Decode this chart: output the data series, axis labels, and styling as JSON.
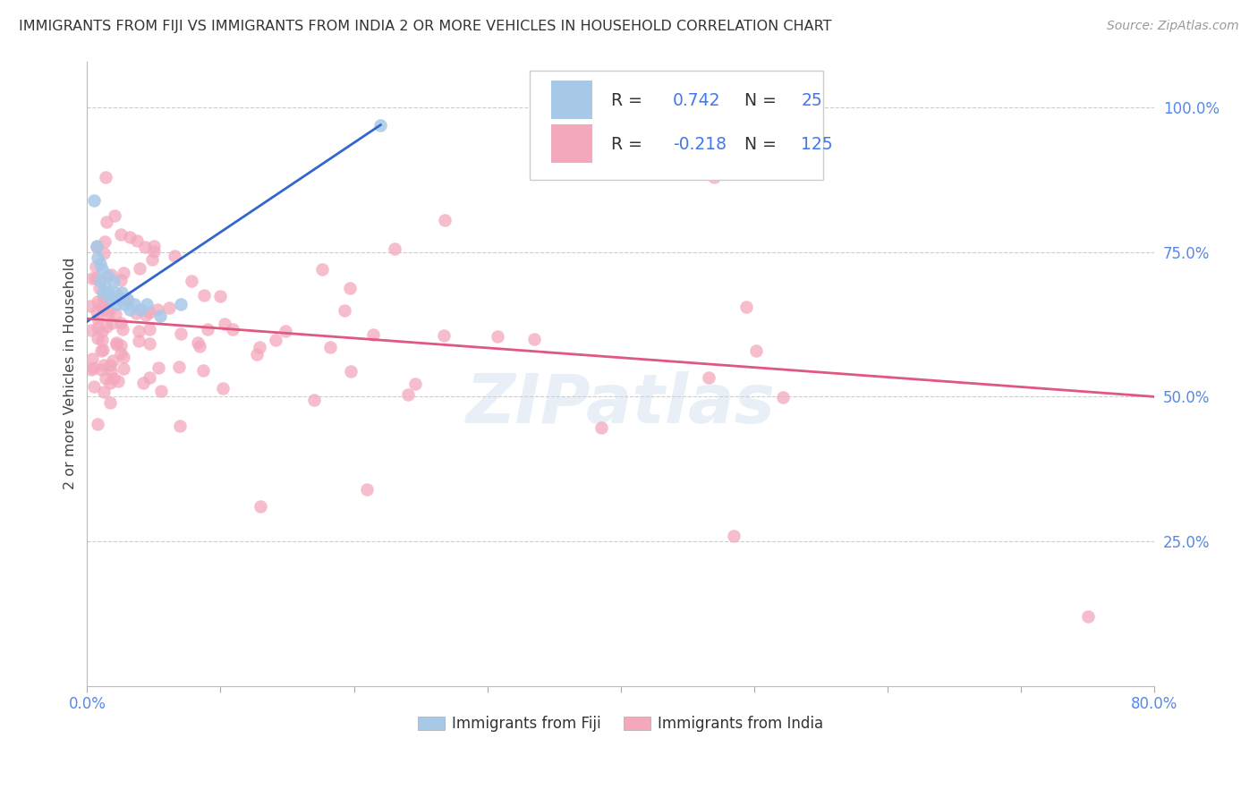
{
  "title": "IMMIGRANTS FROM FIJI VS IMMIGRANTS FROM INDIA 2 OR MORE VEHICLES IN HOUSEHOLD CORRELATION CHART",
  "source": "Source: ZipAtlas.com",
  "ylabel": "2 or more Vehicles in Household",
  "ytick_labels": [
    "100.0%",
    "75.0%",
    "50.0%",
    "25.0%"
  ],
  "ytick_values": [
    1.0,
    0.75,
    0.5,
    0.25
  ],
  "xlim": [
    0.0,
    0.8
  ],
  "ylim": [
    0.0,
    1.08
  ],
  "fiji_color": "#a8c8e8",
  "india_color": "#f4a8bc",
  "fiji_line_color": "#3366cc",
  "india_line_color": "#e05880",
  "fiji_R": 0.742,
  "fiji_N": 25,
  "india_R": -0.218,
  "india_N": 125,
  "legend_fiji_label": "Immigrants from Fiji",
  "legend_india_label": "Immigrants from India",
  "watermark": "ZIPatlas",
  "grid_color": "#cccccc",
  "background_color": "#ffffff",
  "title_color": "#333333",
  "source_color": "#999999",
  "axis_label_color": "#5588ee",
  "legend_text_color_label": "#333333",
  "legend_text_color_value": "#4477ee"
}
